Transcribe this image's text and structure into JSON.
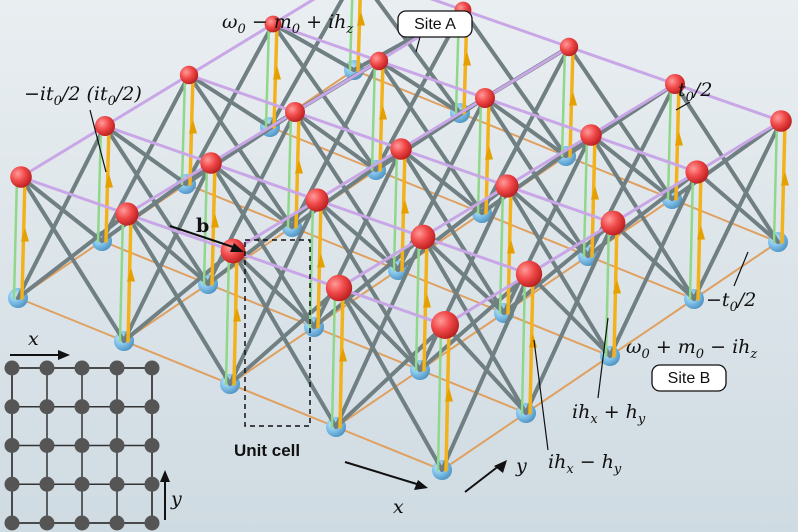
{
  "labels": {
    "site_a_energy": [
      "ω",
      "0",
      " − m",
      "0",
      " + ih",
      "z"
    ],
    "site_a": "Site A",
    "hop_left": [
      "−it",
      "0",
      "/2 (it",
      "0",
      "/2)"
    ],
    "hop_right": [
      "t",
      "0",
      "/2"
    ],
    "vector_b": "b",
    "hop_bottom": [
      "−t",
      "0",
      "/2"
    ],
    "site_b_energy": [
      "ω",
      "0",
      " + m",
      "0",
      " − ih",
      "z"
    ],
    "site_b": "Site B",
    "coupling_plus": [
      "ih",
      "x",
      " + h",
      "y"
    ],
    "coupling_minus": [
      "ih",
      "x",
      " − h",
      "y"
    ],
    "unit_cell": "Unit cell",
    "axis_x_main": "x",
    "axis_y_main": "y",
    "axis_x_inset": "x",
    "axis_y_inset": "y"
  }
}
